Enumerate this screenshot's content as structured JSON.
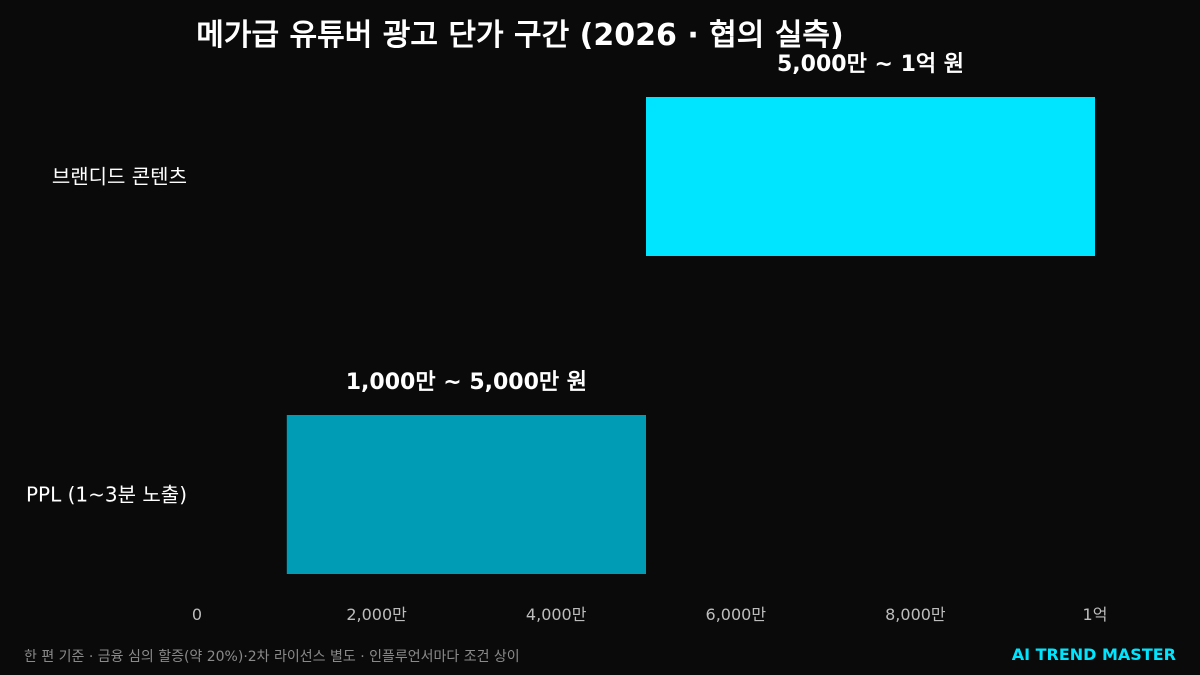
{
  "chart_data": {
    "type": "bar",
    "orientation": "horizontal",
    "title": "메가급 유튜버 광고 단가 구간 (2026 · 협의 실측)",
    "unit": "만 원",
    "xlim": [
      0,
      10000
    ],
    "x_ticks": [
      {
        "value": 0,
        "label": "0"
      },
      {
        "value": 2000,
        "label": "2,000만"
      },
      {
        "value": 4000,
        "label": "4,000만"
      },
      {
        "value": 6000,
        "label": "6,000만"
      },
      {
        "value": 8000,
        "label": "8,000만"
      },
      {
        "value": 10000,
        "label": "1억"
      }
    ],
    "grid": false,
    "categories": [
      "브랜디드 콘텐츠",
      "PPL (1~3분 노출)"
    ],
    "ranges": [
      {
        "category": "브랜디드 콘텐츠",
        "start": 5000,
        "end": 10000,
        "label": "5,000만 ~ 1억 원",
        "color": "#00e5ff"
      },
      {
        "category": "PPL (1~3분 노출)",
        "start": 1000,
        "end": 5000,
        "label": "1,000만 ~ 5,000만 원",
        "color": "#009bb4"
      }
    ]
  },
  "footnote": "한 편 기준 · 금융 심의 할증(약 20%)·2차 라이선스 별도 · 인플루언서마다 조건 상이",
  "brand": "AI TREND MASTER"
}
